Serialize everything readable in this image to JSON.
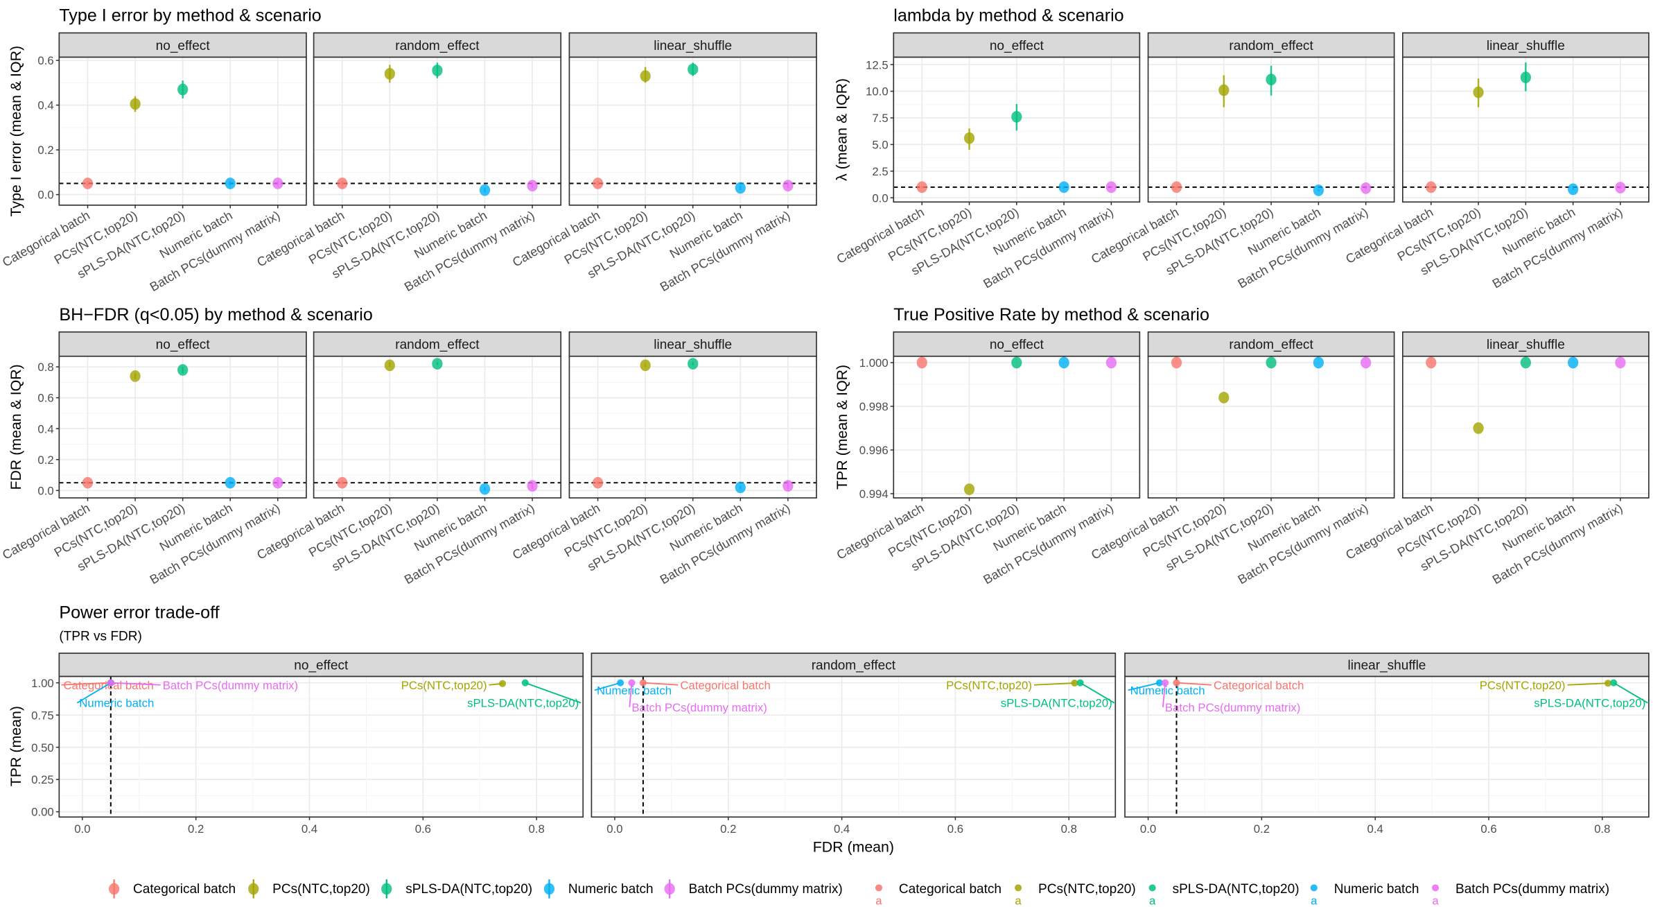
{
  "methods": [
    "Categorical batch",
    "PCs(NTC,top20)",
    "sPLS-DA(NTC,top20)",
    "Numeric batch",
    "Batch PCs(dummy matrix)"
  ],
  "colors": [
    "#F8766D",
    "#A3A500",
    "#00BF7D",
    "#00B0F6",
    "#E76BF3"
  ],
  "scenarios": [
    "no_effect",
    "random_effect",
    "linear_shuffle"
  ],
  "chart_data": [
    {
      "type": "scatter",
      "title": "Type I error by method & scenario",
      "ylabel": "Type I error (mean & IQR)",
      "yticks": [
        0,
        0.2,
        0.4,
        0.6
      ],
      "ytick_labels": [
        "0.0",
        "0.2",
        "0.4",
        "0.6"
      ],
      "reference_line": 0.05,
      "series": [
        {
          "scenario": "no_effect",
          "mean": [
            0.05,
            0.405,
            0.47,
            0.05,
            0.05
          ],
          "iqr": [
            [
              0.04,
              0.06
            ],
            [
              0.37,
              0.44
            ],
            [
              0.43,
              0.51
            ],
            [
              0.04,
              0.06
            ],
            [
              0.04,
              0.06
            ]
          ]
        },
        {
          "scenario": "random_effect",
          "mean": [
            0.05,
            0.54,
            0.555,
            0.02,
            0.04
          ],
          "iqr": [
            [
              0.04,
              0.06
            ],
            [
              0.5,
              0.58
            ],
            [
              0.52,
              0.59
            ],
            [
              0.01,
              0.03
            ],
            [
              0.03,
              0.05
            ]
          ]
        },
        {
          "scenario": "linear_shuffle",
          "mean": [
            0.05,
            0.53,
            0.56,
            0.03,
            0.04
          ],
          "iqr": [
            [
              0.04,
              0.06
            ],
            [
              0.5,
              0.57
            ],
            [
              0.53,
              0.59
            ],
            [
              0.02,
              0.04
            ],
            [
              0.03,
              0.05
            ]
          ]
        }
      ]
    },
    {
      "type": "scatter",
      "title": "lambda by method & scenario",
      "ylabel": "λ (mean & IQR)",
      "yticks": [
        0,
        2.5,
        5,
        7.5,
        10,
        12.5
      ],
      "ytick_labels": [
        "0.0",
        "2.5",
        "5.0",
        "7.5",
        "10.0",
        "12.5"
      ],
      "reference_line": 1,
      "series": [
        {
          "scenario": "no_effect",
          "mean": [
            1.0,
            5.6,
            7.6,
            1.0,
            1.0
          ],
          "iqr": [
            [
              0.9,
              1.1
            ],
            [
              4.5,
              6.5
            ],
            [
              6.3,
              8.8
            ],
            [
              0.9,
              1.1
            ],
            [
              0.9,
              1.1
            ]
          ]
        },
        {
          "scenario": "random_effect",
          "mean": [
            1.0,
            10.1,
            11.1,
            0.7,
            0.9
          ],
          "iqr": [
            [
              0.9,
              1.1
            ],
            [
              8.5,
              11.5
            ],
            [
              9.6,
              12.4
            ],
            [
              0.6,
              0.8
            ],
            [
              0.8,
              1.0
            ]
          ]
        },
        {
          "scenario": "linear_shuffle",
          "mean": [
            1.0,
            9.9,
            11.3,
            0.8,
            0.95
          ],
          "iqr": [
            [
              0.9,
              1.1
            ],
            [
              8.5,
              11.2
            ],
            [
              10.0,
              12.7
            ],
            [
              0.7,
              0.9
            ],
            [
              0.85,
              1.05
            ]
          ]
        }
      ]
    },
    {
      "type": "scatter",
      "title": "BH−FDR (q<0.05) by method & scenario",
      "ylabel": "FDR (mean & IQR)",
      "yticks": [
        0,
        0.2,
        0.4,
        0.6,
        0.8
      ],
      "ytick_labels": [
        "0.0",
        "0.2",
        "0.4",
        "0.6",
        "0.8"
      ],
      "reference_line": 0.05,
      "series": [
        {
          "scenario": "no_effect",
          "mean": [
            0.05,
            0.74,
            0.78,
            0.05,
            0.05
          ],
          "iqr": [
            [
              0.04,
              0.06
            ],
            [
              0.72,
              0.76
            ],
            [
              0.76,
              0.8
            ],
            [
              0.04,
              0.06
            ],
            [
              0.03,
              0.07
            ]
          ]
        },
        {
          "scenario": "random_effect",
          "mean": [
            0.05,
            0.81,
            0.82,
            0.01,
            0.03
          ],
          "iqr": [
            [
              0.04,
              0.06
            ],
            [
              0.8,
              0.83
            ],
            [
              0.81,
              0.83
            ],
            [
              0.0,
              0.02
            ],
            [
              0.01,
              0.05
            ]
          ]
        },
        {
          "scenario": "linear_shuffle",
          "mean": [
            0.05,
            0.81,
            0.82,
            0.02,
            0.03
          ],
          "iqr": [
            [
              0.04,
              0.06
            ],
            [
              0.8,
              0.82
            ],
            [
              0.81,
              0.83
            ],
            [
              0.01,
              0.03
            ],
            [
              0.01,
              0.06
            ]
          ]
        }
      ]
    },
    {
      "type": "scatter",
      "title": "True Positive Rate by method & scenario",
      "ylabel": "TPR (mean & IQR)",
      "yticks": [
        0.994,
        0.996,
        0.998,
        1.0
      ],
      "ytick_labels": [
        "0.994",
        "0.996",
        "0.998",
        "1.000"
      ],
      "reference_line": null,
      "series": [
        {
          "scenario": "no_effect",
          "mean": [
            1.0,
            0.9942,
            1.0,
            1.0,
            1.0
          ],
          "iqr": [
            [
              1,
              1
            ],
            [
              0.9942,
              0.9942
            ],
            [
              1,
              1
            ],
            [
              1,
              1
            ],
            [
              1,
              1
            ]
          ]
        },
        {
          "scenario": "random_effect",
          "mean": [
            1.0,
            0.9984,
            1.0,
            1.0,
            1.0
          ],
          "iqr": [
            [
              1,
              1
            ],
            [
              0.9984,
              0.9984
            ],
            [
              1,
              1
            ],
            [
              1,
              1
            ],
            [
              1,
              1
            ]
          ]
        },
        {
          "scenario": "linear_shuffle",
          "mean": [
            1.0,
            0.997,
            1.0,
            1.0,
            1.0
          ],
          "iqr": [
            [
              1,
              1
            ],
            [
              0.997,
              0.997
            ],
            [
              1,
              1
            ],
            [
              1,
              1
            ],
            [
              1,
              1
            ]
          ]
        }
      ]
    },
    {
      "type": "scatter",
      "title": "Power error trade-off",
      "subtitle": "(TPR vs FDR)",
      "xlabel": "FDR (mean)",
      "ylabel": "TPR (mean)",
      "xticks": [
        0,
        0.2,
        0.4,
        0.6,
        0.8
      ],
      "xtick_labels": [
        "0.0",
        "0.2",
        "0.4",
        "0.6",
        "0.8"
      ],
      "yticks": [
        0,
        0.25,
        0.5,
        0.75,
        1.0
      ],
      "ytick_labels": [
        "0.00",
        "0.25",
        "0.50",
        "0.75",
        "1.00"
      ],
      "reference_line": 0.05,
      "series": [
        {
          "scenario": "no_effect",
          "x": [
            0.05,
            0.74,
            0.78,
            0.05,
            0.05
          ],
          "y": [
            1.0,
            0.994,
            1.0,
            1.0,
            1.0
          ]
        },
        {
          "scenario": "random_effect",
          "x": [
            0.05,
            0.81,
            0.82,
            0.01,
            0.03
          ],
          "y": [
            1.0,
            0.998,
            1.0,
            1.0,
            1.0
          ]
        },
        {
          "scenario": "linear_shuffle",
          "x": [
            0.05,
            0.81,
            0.82,
            0.02,
            0.03
          ],
          "y": [
            1.0,
            0.997,
            1.0,
            1.0,
            1.0
          ]
        }
      ]
    }
  ],
  "legend_key_letter": "a"
}
